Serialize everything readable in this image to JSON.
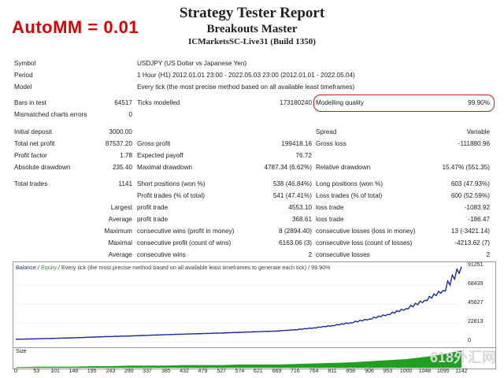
{
  "badge": {
    "automm": "AutoMM = 0.01"
  },
  "header": {
    "title": "Strategy Tester Report",
    "subtitle": "Breakouts Master",
    "server": "ICMarketsSC-Live31 (Build 1350)"
  },
  "info": [
    {
      "label": "Symbol",
      "value": "USDJPY (US Dollar vs Japanese Yen)"
    },
    {
      "label": "Period",
      "value": "1 Hour (H1) 2012.01.01 23:00 - 2022.05.03 23:00 (2012.01.01 - 2022.05.04)"
    },
    {
      "label": "Model",
      "value": "Every tick (the most precise method based on all available least timeframes)"
    }
  ],
  "bars": {
    "bars_label": "Bars in test",
    "bars_value": "64517",
    "ticks_label": "Ticks modelled",
    "ticks_value": "173180240",
    "mq_label": "Modelling quality",
    "mq_value": "99.90%",
    "mismatch_label": "Mismatched charts errors",
    "mismatch_value": "0"
  },
  "stats": {
    "initial_deposit_label": "Initial deposit",
    "initial_deposit": "3000.00",
    "spread_label": "Spread",
    "spread": "Variable",
    "net_profit_label": "Total net profit",
    "net_profit": "87537.20",
    "gross_profit_label": "Gross profit",
    "gross_profit": "199418.16",
    "gross_loss_label": "Gross loss",
    "gross_loss": "-111880.96",
    "profit_factor_label": "Profit factor",
    "profit_factor": "1.78",
    "expected_payoff_label": "Expected payoff",
    "expected_payoff": "76.72",
    "abs_dd_label": "Absolute drawdown",
    "abs_dd": "235.40",
    "max_dd_label": "Maximal drawdown",
    "max_dd": "4787.34 (6.62%)",
    "rel_dd_label": "Relative drawdown",
    "rel_dd": "15.47% (551.35)"
  },
  "trades": {
    "total_label": "Total trades",
    "total": "1141",
    "short_label": "Short positions (won %)",
    "short": "538 (46.84%)",
    "long_label": "Long positions (won %)",
    "long": "603 (47.93%)",
    "profit_trades_label": "Profit trades (% of total)",
    "profit_trades": "541 (47.41%)",
    "loss_trades_label": "Loss trades (% of total)",
    "loss_trades": "600 (52.59%)",
    "largest_label": "Largest",
    "largest_profit_label": "profit trade",
    "largest_profit": "4553.10",
    "largest_loss_label": "loss trade",
    "largest_loss": "-1083.92",
    "average_label": "Average",
    "avg_profit_label": "profit trade",
    "avg_profit": "368.61",
    "avg_loss_label": "loss trade",
    "avg_loss": "-186.47",
    "maximum_label": "Maximum",
    "max_wins_label": "consecutive wins (profit in money)",
    "max_wins": "8 (2894.40)",
    "max_losses_label": "consecutive losses (loss in money)",
    "max_losses": "13 (-3421.14)",
    "maximal_label": "Maximal",
    "maximal_profit_label": "consecutive profit (count of wins)",
    "maximal_profit": "6163.06 (3)",
    "maximal_loss_label": "consecutive loss (count of losses)",
    "maximal_loss": "-4213.62 (7)",
    "average2_label": "Average",
    "avg_wins_label": "consecutive wins",
    "avg_wins": "2",
    "avg_losses_label": "consecutive losses",
    "avg_losses": "2"
  },
  "chart": {
    "legend_balance": "Balance",
    "legend_sep": " / ",
    "legend_equity": "Equity",
    "legend_rest": " / Every tick (the most precise method based on all available least timeframes to generate each tick) / 99.90%",
    "size_label": "Size",
    "colors": {
      "balance": "#1a2a9c",
      "size": "#1fa01f"
    }
  },
  "chart_data": {
    "type": "line",
    "title": "",
    "ylabel": "",
    "xlabel": "",
    "yticks": [
      "91251",
      "68439",
      "45627",
      "22813",
      "0"
    ],
    "ytick_values": [
      91251,
      68439,
      45627,
      22813,
      0
    ],
    "xticks": [
      "0",
      "53",
      "101",
      "148",
      "195",
      "243",
      "290",
      "337",
      "385",
      "432",
      "479",
      "527",
      "574",
      "621",
      "669",
      "716",
      "764",
      "811",
      "858",
      "906",
      "953",
      "1000",
      "1048",
      "1095",
      "1142"
    ],
    "ylim": [
      0,
      91251
    ],
    "xlim": [
      0,
      1142
    ],
    "series": [
      {
        "x": [
          0,
          53,
          101,
          148,
          195,
          243,
          290,
          337,
          385,
          432,
          479,
          527,
          574,
          621,
          669,
          716,
          764,
          811,
          858,
          906,
          953,
          1000,
          1048,
          1095,
          1142
        ],
        "values": [
          3000,
          3600,
          4200,
          4800,
          5600,
          6400,
          7000,
          7800,
          8600,
          9300,
          9900,
          10600,
          11400,
          12200,
          13000,
          14500,
          16800,
          19500,
          23000,
          27500,
          33000,
          40000,
          50000,
          62000,
          90500
        ]
      }
    ],
    "size_series": {
      "x": [
        0,
        53,
        101,
        148,
        195,
        243,
        290,
        337,
        385,
        432,
        479,
        527,
        574,
        621,
        669,
        716,
        764,
        811,
        858,
        906,
        953,
        1000,
        1048,
        1095,
        1142
      ],
      "values": [
        0.01,
        0.02,
        0.02,
        0.02,
        0.03,
        0.03,
        0.04,
        0.04,
        0.04,
        0.05,
        0.05,
        0.05,
        0.06,
        0.06,
        0.06,
        0.07,
        0.08,
        0.09,
        0.1,
        0.12,
        0.14,
        0.16,
        0.2,
        0.25,
        0.32
      ]
    }
  },
  "watermark": "618外汇网"
}
